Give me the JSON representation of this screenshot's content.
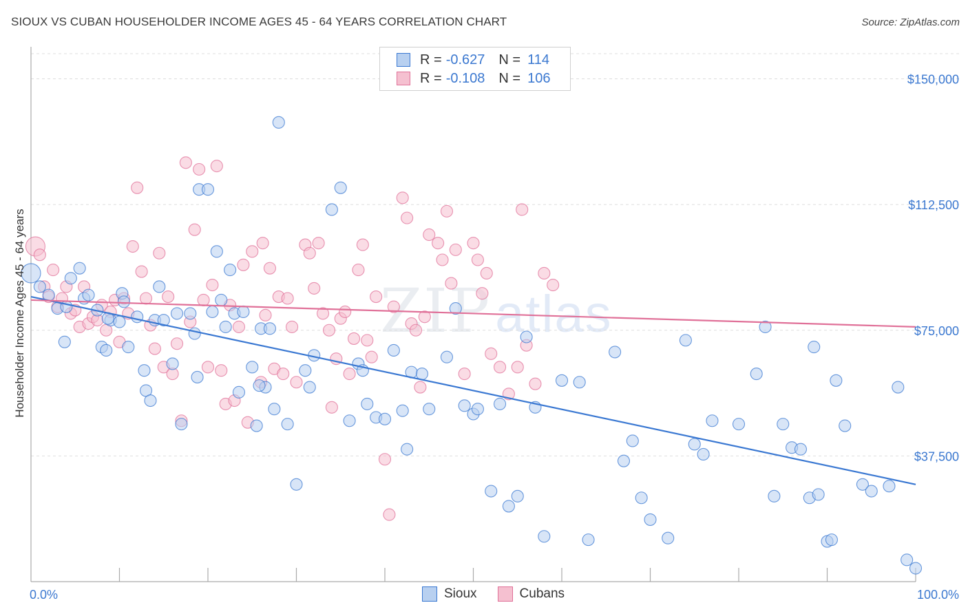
{
  "title": "SIOUX VS CUBAN HOUSEHOLDER INCOME AGES 45 - 64 YEARS CORRELATION CHART",
  "source": "Source: ZipAtlas.com",
  "watermark": {
    "zip": "ZIP",
    "atlas": "atlas"
  },
  "colors": {
    "sioux": "#3a78d2",
    "sioux_fill": "#b8d0f0",
    "cubans": "#e07098",
    "cubans_fill": "#f5c0d0"
  },
  "legend": {
    "rows": [
      {
        "r_label": "R =",
        "r_value": "-0.627",
        "n_label": "N =",
        "n_value": "114"
      },
      {
        "r_label": "R =",
        "r_value": "-0.108",
        "n_label": "N =",
        "n_value": "106"
      }
    ],
    "bottom": [
      "Sioux",
      "Cubans"
    ]
  },
  "chart_data": {
    "type": "scatter",
    "title": "SIOUX VS CUBAN HOUSEHOLDER INCOME AGES 45 - 64 YEARS CORRELATION CHART",
    "xlabel": "",
    "ylabel": "Householder Income Ages 45 - 64 years",
    "xlim": [
      0,
      100
    ],
    "ylim": [
      0,
      157500
    ],
    "x_tick_labels": [
      "0.0%",
      "100.0%"
    ],
    "y_ticks": [
      37500,
      75000,
      112500,
      150000
    ],
    "y_tick_labels": [
      "$37,500",
      "$75,000",
      "$112,500",
      "$150,000"
    ],
    "series": [
      {
        "name": "Sioux",
        "trend": {
          "x": [
            0,
            100
          ],
          "y": [
            85000,
            29000
          ]
        },
        "points": [
          [
            0,
            92000
          ],
          [
            1,
            88000
          ],
          [
            2,
            85500
          ],
          [
            3,
            81500
          ],
          [
            4,
            82000
          ],
          [
            4.5,
            90500
          ],
          [
            3.8,
            71500
          ],
          [
            5.5,
            93500
          ],
          [
            6,
            84500
          ],
          [
            6.5,
            85500
          ],
          [
            7.5,
            81000
          ],
          [
            8,
            70000
          ],
          [
            8.5,
            69000
          ],
          [
            9,
            78000
          ],
          [
            10,
            77500
          ],
          [
            10.3,
            86000
          ],
          [
            10.5,
            83500
          ],
          [
            11,
            70000
          ],
          [
            12,
            79000
          ],
          [
            12.8,
            63000
          ],
          [
            13,
            57000
          ],
          [
            13.5,
            54000
          ],
          [
            14,
            78000
          ],
          [
            15,
            78000
          ],
          [
            16,
            65000
          ],
          [
            16.5,
            80000
          ],
          [
            17,
            47000
          ],
          [
            18,
            80000
          ],
          [
            18.5,
            74000
          ],
          [
            18.8,
            61000
          ],
          [
            19,
            117000
          ],
          [
            20,
            117000
          ],
          [
            20.5,
            80500
          ],
          [
            21,
            98500
          ],
          [
            21.5,
            84000
          ],
          [
            22,
            76000
          ],
          [
            22.5,
            93000
          ],
          [
            23,
            80000
          ],
          [
            23.5,
            56500
          ],
          [
            24,
            80500
          ],
          [
            25,
            64000
          ],
          [
            25.5,
            46500
          ],
          [
            26,
            75500
          ],
          [
            26.5,
            58000
          ],
          [
            27,
            75500
          ],
          [
            27.5,
            51500
          ],
          [
            28,
            137000
          ],
          [
            29,
            47000
          ],
          [
            30,
            29000
          ],
          [
            31,
            63000
          ],
          [
            32,
            67500
          ],
          [
            31.5,
            58000
          ],
          [
            34,
            111000
          ],
          [
            35,
            117500
          ],
          [
            36,
            48000
          ],
          [
            37,
            65000
          ],
          [
            37.5,
            63000
          ],
          [
            38,
            53000
          ],
          [
            39,
            49000
          ],
          [
            40,
            48500
          ],
          [
            41,
            69000
          ],
          [
            42,
            51000
          ],
          [
            42.5,
            39500
          ],
          [
            43,
            62500
          ],
          [
            45,
            51500
          ],
          [
            47,
            67000
          ],
          [
            48,
            81500
          ],
          [
            49,
            52500
          ],
          [
            50,
            50000
          ],
          [
            50.5,
            51500
          ],
          [
            52,
            27000
          ],
          [
            53,
            53000
          ],
          [
            54,
            22500
          ],
          [
            55,
            25500
          ],
          [
            56,
            73000
          ],
          [
            57,
            52000
          ],
          [
            58,
            13500
          ],
          [
            60,
            60000
          ],
          [
            62,
            59500
          ],
          [
            63,
            12500
          ],
          [
            66,
            68500
          ],
          [
            67,
            36000
          ],
          [
            68,
            42000
          ],
          [
            69,
            25000
          ],
          [
            70,
            18500
          ],
          [
            72,
            13000
          ],
          [
            74,
            72000
          ],
          [
            75,
            41000
          ],
          [
            76,
            38000
          ],
          [
            77,
            48000
          ],
          [
            80,
            47000
          ],
          [
            82,
            62000
          ],
          [
            83,
            76000
          ],
          [
            84,
            25500
          ],
          [
            85,
            47000
          ],
          [
            86,
            40000
          ],
          [
            87,
            39500
          ],
          [
            88,
            25000
          ],
          [
            88.5,
            70000
          ],
          [
            89,
            26000
          ],
          [
            90,
            12000
          ],
          [
            90.5,
            12500
          ],
          [
            91,
            60000
          ],
          [
            92,
            46500
          ],
          [
            94,
            29000
          ],
          [
            95,
            27000
          ],
          [
            97,
            28500
          ],
          [
            98,
            58000
          ],
          [
            99,
            6500
          ],
          [
            100,
            4000
          ],
          [
            8.7,
            78500
          ],
          [
            14.5,
            88000
          ],
          [
            25.8,
            58500
          ],
          [
            44.2,
            62000
          ]
        ]
      },
      {
        "name": "Cubans",
        "trend": {
          "x": [
            0,
            100
          ],
          "y": [
            84000,
            76000
          ]
        },
        "points": [
          [
            0.5,
            100000
          ],
          [
            1,
            97500
          ],
          [
            1.5,
            88000
          ],
          [
            2,
            85000
          ],
          [
            2.5,
            93000
          ],
          [
            3,
            82000
          ],
          [
            3.5,
            84500
          ],
          [
            4,
            88000
          ],
          [
            4.5,
            80000
          ],
          [
            5,
            81000
          ],
          [
            5.5,
            76000
          ],
          [
            6,
            88000
          ],
          [
            6.5,
            77000
          ],
          [
            7,
            79000
          ],
          [
            7.5,
            78000
          ],
          [
            8,
            82500
          ],
          [
            8.5,
            75000
          ],
          [
            9,
            80500
          ],
          [
            9.5,
            84000
          ],
          [
            10,
            71500
          ],
          [
            10.5,
            84500
          ],
          [
            11,
            80000
          ],
          [
            11.5,
            100000
          ],
          [
            12,
            117500
          ],
          [
            12.5,
            92500
          ],
          [
            13,
            84500
          ],
          [
            13.5,
            76500
          ],
          [
            14,
            69500
          ],
          [
            14.5,
            98000
          ],
          [
            15,
            64000
          ],
          [
            15.5,
            85000
          ],
          [
            16,
            62000
          ],
          [
            16.5,
            71000
          ],
          [
            17,
            48000
          ],
          [
            17.5,
            125000
          ],
          [
            18,
            77500
          ],
          [
            18.5,
            105000
          ],
          [
            19,
            123000
          ],
          [
            19.5,
            84000
          ],
          [
            20,
            64000
          ],
          [
            20.5,
            88500
          ],
          [
            21,
            124000
          ],
          [
            21.5,
            63000
          ],
          [
            22,
            53000
          ],
          [
            22.5,
            82500
          ],
          [
            23,
            54000
          ],
          [
            23.5,
            76000
          ],
          [
            24,
            94500
          ],
          [
            24.5,
            47500
          ],
          [
            25,
            98500
          ],
          [
            26,
            59500
          ],
          [
            26.5,
            79500
          ],
          [
            27,
            93500
          ],
          [
            27.5,
            63500
          ],
          [
            28,
            85000
          ],
          [
            28.5,
            62000
          ],
          [
            29,
            84500
          ],
          [
            29.5,
            76000
          ],
          [
            30,
            59500
          ],
          [
            31,
            100500
          ],
          [
            31.5,
            98000
          ],
          [
            32,
            87500
          ],
          [
            32.5,
            101000
          ],
          [
            33,
            80000
          ],
          [
            34,
            52000
          ],
          [
            34.5,
            66500
          ],
          [
            35,
            78500
          ],
          [
            35.5,
            80500
          ],
          [
            36,
            62000
          ],
          [
            36.5,
            72500
          ],
          [
            37,
            93000
          ],
          [
            37.5,
            100500
          ],
          [
            38,
            72000
          ],
          [
            38.5,
            67000
          ],
          [
            39,
            85000
          ],
          [
            40,
            36500
          ],
          [
            40.5,
            20000
          ],
          [
            41,
            82000
          ],
          [
            42,
            114500
          ],
          [
            42.5,
            108500
          ],
          [
            43,
            77000
          ],
          [
            43.5,
            75000
          ],
          [
            44,
            58000
          ],
          [
            44.5,
            79000
          ],
          [
            45,
            103500
          ],
          [
            46,
            101000
          ],
          [
            46.5,
            96000
          ],
          [
            47,
            110500
          ],
          [
            47.5,
            89000
          ],
          [
            48,
            99000
          ],
          [
            49,
            62000
          ],
          [
            50,
            101000
          ],
          [
            50.5,
            96000
          ],
          [
            51,
            86000
          ],
          [
            51.5,
            92000
          ],
          [
            52,
            68000
          ],
          [
            53,
            64000
          ],
          [
            54,
            56000
          ],
          [
            55,
            64000
          ],
          [
            56,
            70500
          ],
          [
            57,
            59000
          ],
          [
            58,
            92000
          ],
          [
            59,
            88500
          ],
          [
            55.5,
            111000
          ],
          [
            26.2,
            101000
          ],
          [
            33.7,
            75000
          ]
        ]
      }
    ]
  }
}
